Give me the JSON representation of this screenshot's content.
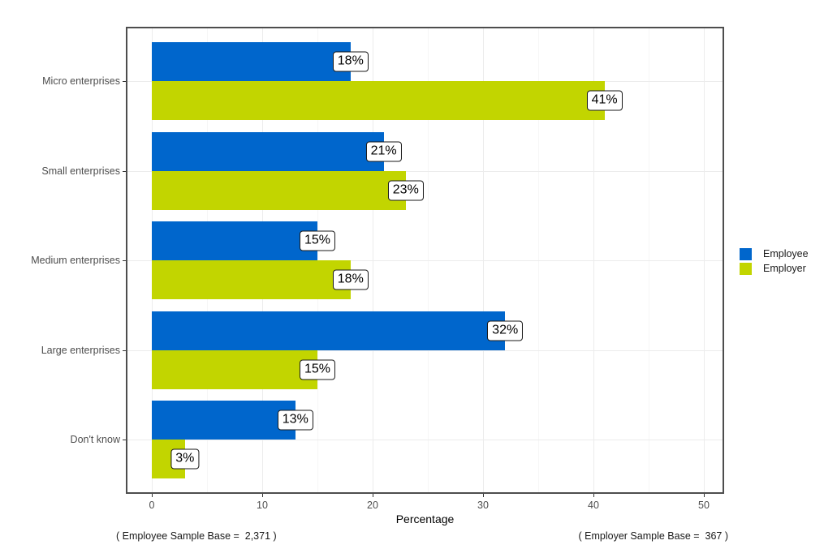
{
  "chart_data": {
    "type": "bar",
    "orientation": "horizontal",
    "title": "",
    "xlabel": "Percentage",
    "categories": [
      "Micro enterprises",
      "Small enterprises",
      "Medium enterprises",
      "Large enterprises",
      "Don't know"
    ],
    "series": [
      {
        "name": "Employee",
        "color": "#0066CC",
        "values": [
          18,
          21,
          15,
          32,
          13
        ]
      },
      {
        "name": "Employer",
        "color": "#C2D500",
        "values": [
          41,
          23,
          18,
          15,
          3
        ]
      }
    ],
    "value_label_suffix": "%",
    "x_tick_labels": [
      "0",
      "10",
      "20",
      "30",
      "40",
      "50"
    ],
    "x_tick_values": [
      0,
      10,
      20,
      30,
      40,
      50
    ],
    "x_minor_tick_values": [
      5,
      15,
      25,
      35,
      45
    ],
    "xlim": [
      -2.4,
      51.8
    ],
    "grid": "major-vertical, minor-vertical, major-horizontal",
    "legend_position": "right-middle"
  },
  "legend": {
    "entries": [
      "Employee",
      "Employer"
    ]
  },
  "footnotes": {
    "left": "( Employee Sample Base =  2,371 )",
    "right": "( Employer Sample Base =  367 )"
  },
  "colors": {
    "employee_bar": "#0066CC",
    "employer_bar": "#C2D500",
    "axis_text": "#4D4D4D",
    "axis_title": "#000000",
    "panel_border": "#4D4D4D",
    "grid_major": "#ECECEC",
    "grid_minor": "#F6F6F6",
    "value_label_border": "#1A1A1A",
    "value_label_bg": "#FFFFFF",
    "background": "#FFFFFF"
  }
}
